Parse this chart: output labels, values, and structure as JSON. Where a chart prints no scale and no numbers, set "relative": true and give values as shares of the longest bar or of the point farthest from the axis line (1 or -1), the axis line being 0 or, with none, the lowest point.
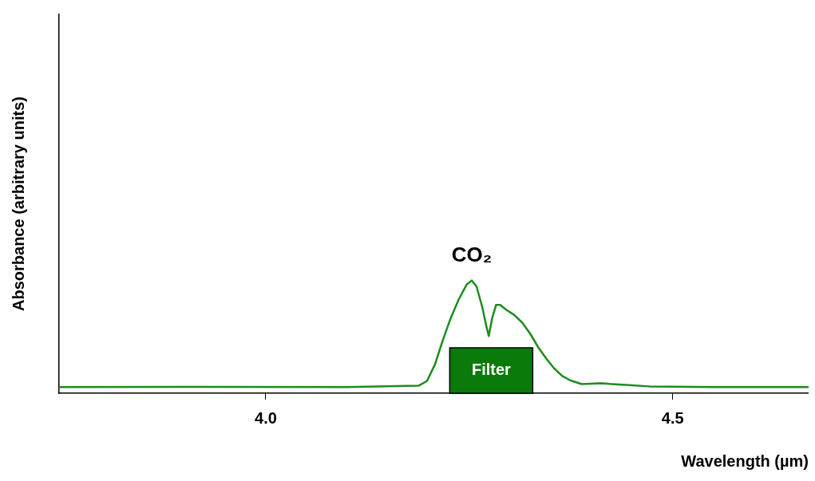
{
  "chart_data": {
    "type": "line",
    "xlabel": "Wavelength (µm)",
    "ylabel": "Absorbance (arbitrary units)",
    "relative": true,
    "xlim": [
      3.746,
      4.667
    ],
    "xticks": [
      {
        "value": 4,
        "label": "4.0"
      },
      {
        "value": 4.5,
        "label": "4.5"
      }
    ],
    "series": [
      {
        "color": "#1e8c1e",
        "x": [
          3.746,
          3.9,
          4.1,
          4.188,
          4.198,
          4.208,
          4.217,
          4.227,
          4.237,
          4.247,
          4.253,
          4.259,
          4.266,
          4.271,
          4.274,
          4.278,
          4.283,
          4.288,
          4.295,
          4.305,
          4.315,
          4.325,
          4.335,
          4.345,
          4.354,
          4.364,
          4.374,
          4.388,
          4.412,
          4.442,
          4.471,
          4.55,
          4.667
        ],
        "values": [
          0.054,
          0.056,
          0.054,
          0.068,
          0.108,
          0.257,
          0.459,
          0.662,
          0.831,
          0.966,
          1.0,
          0.946,
          0.764,
          0.595,
          0.507,
          0.662,
          0.784,
          0.784,
          0.743,
          0.696,
          0.628,
          0.527,
          0.405,
          0.304,
          0.223,
          0.155,
          0.115,
          0.081,
          0.088,
          0.074,
          0.061,
          0.054,
          0.054
        ]
      }
    ],
    "bands": [
      {
        "axis": "x",
        "from": 4.226,
        "to": 4.328,
        "label": "Filter",
        "color": "#0a7a0a"
      }
    ],
    "annotations": [
      {
        "text": "CO₂",
        "x": 4.253,
        "y": 1.0
      }
    ],
    "grid": false,
    "legend": false,
    "marker": "none",
    "line_style": "solid"
  }
}
